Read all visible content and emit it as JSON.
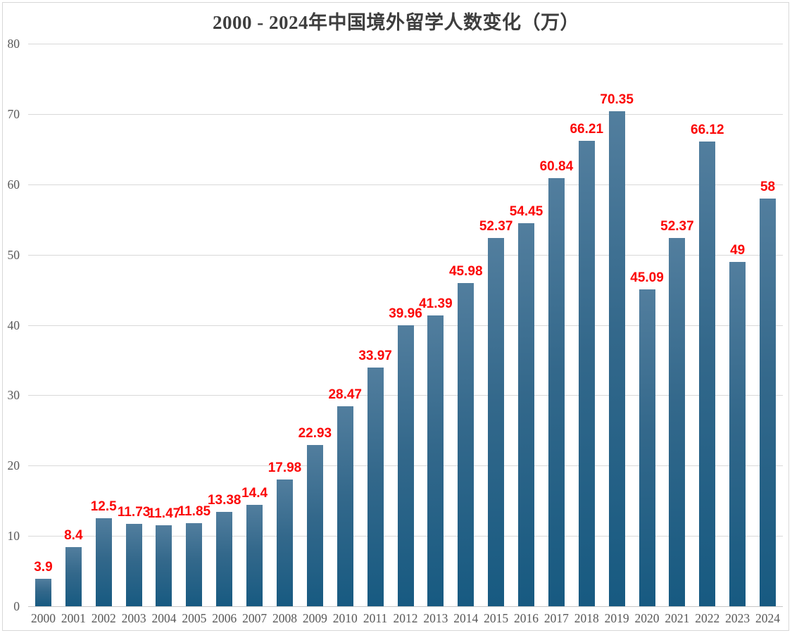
{
  "chart_data": {
    "type": "bar",
    "title": "2000 - 2024年中国境外留学人数变化（万）",
    "xlabel": "",
    "ylabel": "",
    "categories": [
      "2000",
      "2001",
      "2002",
      "2003",
      "2004",
      "2005",
      "2006",
      "2007",
      "2008",
      "2009",
      "2010",
      "2011",
      "2012",
      "2013",
      "2014",
      "2015",
      "2016",
      "2017",
      "2018",
      "2019",
      "2020",
      "2021",
      "2022",
      "2023",
      "2024"
    ],
    "values": [
      3.9,
      8.4,
      12.5,
      11.73,
      11.47,
      11.85,
      13.38,
      14.4,
      17.98,
      22.93,
      28.47,
      33.97,
      39.96,
      41.39,
      45.98,
      52.37,
      54.45,
      60.84,
      66.21,
      70.35,
      45.09,
      52.37,
      66.12,
      49,
      58
    ],
    "data_labels": [
      "3.9",
      "8.4",
      "12.5",
      "11.73",
      "11.47",
      "11.85",
      "13.38",
      "14.4",
      "17.98",
      "22.93",
      "28.47",
      "33.97",
      "39.96",
      "41.39",
      "45.98",
      "52.37",
      "54.45",
      "60.84",
      "66.21",
      "70.35",
      "45.09",
      "52.37",
      "66.12",
      "49",
      "58"
    ],
    "ylim": [
      0,
      80
    ],
    "y_ticks": [
      "0",
      "10",
      "20",
      "30",
      "40",
      "50",
      "60",
      "70",
      "80"
    ],
    "grid": true,
    "legend": "none",
    "colors": {
      "bar_top": "#527e9e",
      "bar_bottom": "#175a81",
      "data_label": "#fb0606",
      "axis_text": "#595959",
      "title_text": "#3e3e3e",
      "gridline": "#d9d9d9"
    }
  }
}
